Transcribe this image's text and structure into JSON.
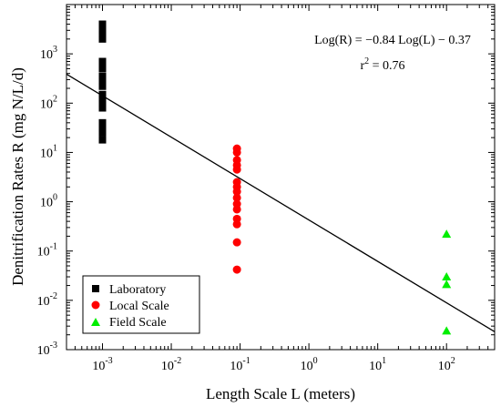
{
  "chart_data": {
    "type": "scatter",
    "xlabel": "Length Scale L (meters)",
    "ylabel": "Denitrification Rates R (mg N/L/d)",
    "x_scale": "log",
    "y_scale": "log",
    "xlim": [
      0.0003,
      500
    ],
    "ylim": [
      0.001,
      10000
    ],
    "x_ticks": [
      {
        "value": 0.001,
        "base": "10",
        "exp": "-3"
      },
      {
        "value": 0.01,
        "base": "10",
        "exp": "-2"
      },
      {
        "value": 0.1,
        "base": "10",
        "exp": "-1"
      },
      {
        "value": 1,
        "base": "10",
        "exp": "0"
      },
      {
        "value": 10,
        "base": "10",
        "exp": "1"
      },
      {
        "value": 100,
        "base": "10",
        "exp": "2"
      }
    ],
    "y_ticks": [
      {
        "value": 0.001,
        "base": "10",
        "exp": "-3"
      },
      {
        "value": 0.01,
        "base": "10",
        "exp": "-2"
      },
      {
        "value": 0.1,
        "base": "10",
        "exp": "-1"
      },
      {
        "value": 1,
        "base": "10",
        "exp": "0"
      },
      {
        "value": 10,
        "base": "10",
        "exp": "1"
      },
      {
        "value": 100,
        "base": "10",
        "exp": "2"
      },
      {
        "value": 1000,
        "base": "10",
        "exp": "3"
      }
    ],
    "grid": false,
    "legend_position": "bottom-left",
    "series": [
      {
        "name": "Laboratory",
        "marker": "square",
        "color": "#000000",
        "points": [
          {
            "x": 0.001,
            "y": 4000
          },
          {
            "x": 0.001,
            "y": 3000
          },
          {
            "x": 0.001,
            "y": 2500
          },
          {
            "x": 0.001,
            "y": 2000
          },
          {
            "x": 0.001,
            "y": 700
          },
          {
            "x": 0.001,
            "y": 500
          },
          {
            "x": 0.001,
            "y": 350
          },
          {
            "x": 0.001,
            "y": 280
          },
          {
            "x": 0.001,
            "y": 220
          },
          {
            "x": 0.001,
            "y": 150
          },
          {
            "x": 0.001,
            "y": 120
          },
          {
            "x": 0.001,
            "y": 100
          },
          {
            "x": 0.001,
            "y": 80
          },
          {
            "x": 0.001,
            "y": 40
          },
          {
            "x": 0.001,
            "y": 30
          },
          {
            "x": 0.001,
            "y": 25
          },
          {
            "x": 0.001,
            "y": 18
          }
        ]
      },
      {
        "name": "Local Scale",
        "marker": "circle",
        "color": "#ff0000",
        "points": [
          {
            "x": 0.09,
            "y": 12
          },
          {
            "x": 0.09,
            "y": 10
          },
          {
            "x": 0.09,
            "y": 7
          },
          {
            "x": 0.09,
            "y": 5.5
          },
          {
            "x": 0.09,
            "y": 4.5
          },
          {
            "x": 0.09,
            "y": 2.5
          },
          {
            "x": 0.09,
            "y": 2
          },
          {
            "x": 0.09,
            "y": 1.6
          },
          {
            "x": 0.09,
            "y": 1.2
          },
          {
            "x": 0.09,
            "y": 0.9
          },
          {
            "x": 0.09,
            "y": 0.7
          },
          {
            "x": 0.09,
            "y": 0.45
          },
          {
            "x": 0.09,
            "y": 0.35
          },
          {
            "x": 0.09,
            "y": 0.15
          },
          {
            "x": 0.09,
            "y": 0.042
          }
        ]
      },
      {
        "name": "Field Scale",
        "marker": "triangle",
        "color": "#00ee00",
        "points": [
          {
            "x": 100,
            "y": 0.22
          },
          {
            "x": 100,
            "y": 0.03
          },
          {
            "x": 100,
            "y": 0.021
          },
          {
            "x": 100,
            "y": 0.0024
          }
        ]
      }
    ],
    "fit_line": {
      "slope": -0.84,
      "intercept": -0.37,
      "color": "#000000"
    },
    "annotations": {
      "equation": "Log(R) = −0.84 Log(L) − 0.37",
      "r2_base": "r",
      "r2_sup": "2",
      "r2_value": " = 0.76"
    }
  }
}
